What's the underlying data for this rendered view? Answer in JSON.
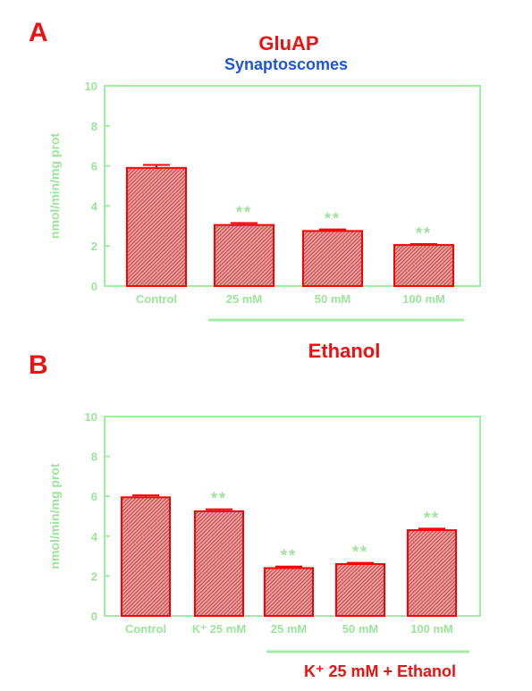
{
  "figure": {
    "panel_a_letter": "A",
    "panel_b_letter": "B",
    "title": "GluAP",
    "subtitle": "Synaptoscomes",
    "colors": {
      "bar_fill": "#c83838",
      "bar_stroke": "#ff0000",
      "axis": "#a0eea0",
      "text_green": "#9be59b",
      "title_red": "#ee1111",
      "subtitle_blue": "#1e56d6"
    }
  },
  "chart_data": [
    {
      "type": "bar",
      "panel": "A",
      "categories": [
        "Control",
        "25 mM",
        "50 mM",
        "100 mM"
      ],
      "values": [
        5.9,
        3.05,
        2.75,
        2.05
      ],
      "errors": [
        0.15,
        0.1,
        0.08,
        0.05
      ],
      "significance": [
        "",
        "**",
        "**",
        "**"
      ],
      "ylabel": "nmol/min/mg prot",
      "ylim": [
        0,
        10
      ],
      "yticks": [
        "0",
        "2",
        "4",
        "6",
        "8",
        "10"
      ],
      "group_label": "Ethanol",
      "grid": false
    },
    {
      "type": "bar",
      "panel": "B",
      "categories": [
        "Control",
        "K⁺ 25 mM",
        "25 mM",
        "50 mM",
        "100 mM"
      ],
      "values": [
        5.95,
        5.25,
        2.4,
        2.6,
        4.3
      ],
      "errors": [
        0.1,
        0.1,
        0.08,
        0.06,
        0.08
      ],
      "significance": [
        "",
        "**",
        "**",
        "**",
        "**"
      ],
      "ylabel": "nmol/min/mg prot",
      "ylim": [
        0,
        10
      ],
      "yticks": [
        "0",
        "2",
        "4",
        "6",
        "8",
        "10"
      ],
      "group_label": "K⁺ 25 mM + Ethanol",
      "grid": false
    }
  ]
}
